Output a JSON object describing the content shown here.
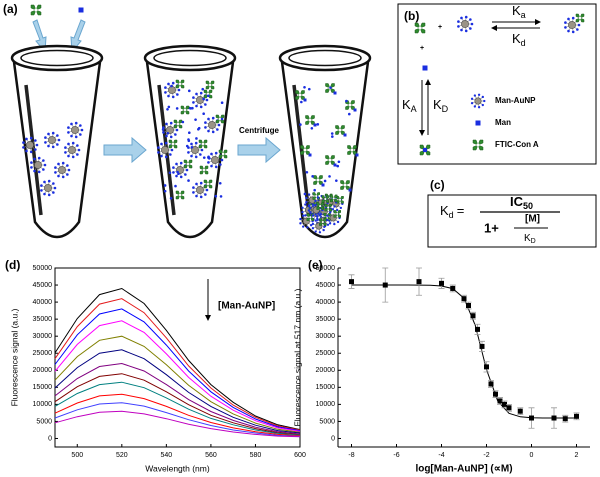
{
  "diagram": {
    "panel_a": "(a)",
    "centrifuge": "Centrifuge",
    "panel_b": "(b)",
    "plus": "+",
    "ka": [
      "K",
      "a"
    ],
    "kd": [
      "K",
      "d"
    ],
    "kA": [
      "K",
      "A"
    ],
    "kD": [
      "K",
      "D"
    ],
    "legend": [
      "Man-AuNP",
      "Man",
      "FTIC-Con A"
    ],
    "panel_c": "(c)",
    "equation": {
      "lhs": [
        "K",
        "d"
      ],
      "equals": "=",
      "numerator": [
        "IC",
        "50"
      ],
      "one_plus": "1+",
      "m": "[M]",
      "kD": [
        "K",
        "D"
      ]
    }
  },
  "chart_data": [
    {
      "type": "line",
      "panel": "(d)",
      "xlabel": "Wavelength (nm)",
      "ylabel": "Fluorescence signal (a.u.)",
      "annotation": "[Man-AuNP]",
      "x": [
        490,
        500,
        510,
        520,
        530,
        540,
        550,
        560,
        570,
        580,
        590,
        600
      ],
      "xlim": [
        490,
        600
      ],
      "xticks": [
        500,
        520,
        540,
        560,
        580,
        600
      ],
      "ylim": [
        -2500,
        50000
      ],
      "yticks": [
        0,
        5000,
        10000,
        15000,
        20000,
        25000,
        30000,
        35000,
        40000,
        45000,
        50000
      ],
      "series": [
        {
          "color": "#000000",
          "values": [
            25100,
            35200,
            42200,
            44000,
            39600,
            31700,
            22900,
            15800,
            10600,
            6600,
            4000,
            2600
          ]
        },
        {
          "color": "#e41a1c",
          "values": [
            23400,
            32800,
            39400,
            41000,
            36900,
            29500,
            21300,
            14800,
            9800,
            6200,
            3700,
            2500
          ]
        },
        {
          "color": "#0000ff",
          "values": [
            21700,
            30400,
            36500,
            38000,
            34200,
            27400,
            19800,
            13700,
            9100,
            5700,
            3400,
            2300
          ]
        },
        {
          "color": "#ff00ff",
          "values": [
            19700,
            27600,
            33100,
            34500,
            31100,
            24800,
            17900,
            12400,
            8300,
            5200,
            3100,
            2100
          ]
        },
        {
          "color": "#808000",
          "values": [
            17100,
            24000,
            28800,
            30000,
            27000,
            21600,
            15600,
            10800,
            7200,
            4500,
            2700,
            1800
          ]
        },
        {
          "color": "#000080",
          "values": [
            14800,
            20800,
            25000,
            26000,
            23400,
            18700,
            13500,
            9400,
            6200,
            3900,
            2300,
            1600
          ]
        },
        {
          "color": "#800080",
          "values": [
            12500,
            17600,
            21100,
            22000,
            19800,
            15800,
            11400,
            7900,
            5300,
            3300,
            2000,
            1300
          ]
        },
        {
          "color": "#800000",
          "values": [
            10800,
            15200,
            18200,
            19000,
            17100,
            13700,
            9900,
            6800,
            4600,
            2900,
            1700,
            1100
          ]
        },
        {
          "color": "#008080",
          "values": [
            9400,
            13200,
            15800,
            16500,
            14900,
            11900,
            8600,
            5900,
            4000,
            2500,
            1500,
            1000
          ]
        },
        {
          "color": "#ff0000",
          "values": [
            7400,
            10400,
            12500,
            13000,
            11700,
            9400,
            6800,
            4700,
            3100,
            2000,
            1200,
            800
          ]
        },
        {
          "color": "#4040ff",
          "values": [
            6000,
            8400,
            10100,
            10500,
            9500,
            7600,
            5500,
            3800,
            2500,
            1600,
            900,
            600
          ]
        },
        {
          "color": "#c000c0",
          "values": [
            4600,
            6400,
            7700,
            8000,
            7200,
            5800,
            4200,
            2900,
            1900,
            1200,
            700,
            500
          ]
        }
      ]
    },
    {
      "type": "scatter",
      "panel": "(e)",
      "xlabel": "log[Man-AuNP] (∝M)",
      "ylabel": "Fluorescence signal at 517 nm (a.u.)",
      "xlim": [
        -8.6,
        2.6
      ],
      "xticks": [
        -8,
        -6,
        -4,
        -2,
        0,
        2
      ],
      "ylim": [
        -2500,
        50000
      ],
      "yticks": [
        0,
        5000,
        10000,
        15000,
        20000,
        25000,
        30000,
        35000,
        40000,
        45000,
        50000
      ],
      "color": "#000000",
      "x": [
        -8,
        -6.5,
        -5,
        -4,
        -3.5,
        -3,
        -2.8,
        -2.6,
        -2.4,
        -2.2,
        -2,
        -1.8,
        -1.6,
        -1.4,
        -1.2,
        -1,
        -0.5,
        0,
        1,
        1.5,
        2
      ],
      "values": [
        46000,
        45000,
        46000,
        45500,
        44000,
        41000,
        39000,
        36000,
        32000,
        27000,
        21000,
        16000,
        13000,
        11000,
        10000,
        9000,
        8000,
        6000,
        6000,
        5800,
        6500
      ],
      "errors": [
        2000,
        5000,
        4000,
        1500,
        1000,
        1000,
        1000,
        1000,
        1500,
        1500,
        1500,
        1000,
        1000,
        1000,
        1000,
        1000,
        1000,
        3000,
        3000,
        1000,
        1000
      ],
      "fit": {
        "x": [
          -8,
          -7.5,
          -7,
          -6.5,
          -6,
          -5.5,
          -5,
          -4.5,
          -4,
          -3.5,
          -3,
          -2.5,
          -2,
          -1.5,
          -1,
          -0.5,
          0,
          0.5,
          1,
          1.5,
          2
        ],
        "values": [
          45000,
          45000,
          45000,
          45000,
          45000,
          45000,
          44980,
          44930,
          44730,
          43960,
          41130,
          33160,
          20230,
          10920,
          7370,
          6350,
          6090,
          6020,
          6010,
          6000,
          6000
        ]
      }
    }
  ]
}
